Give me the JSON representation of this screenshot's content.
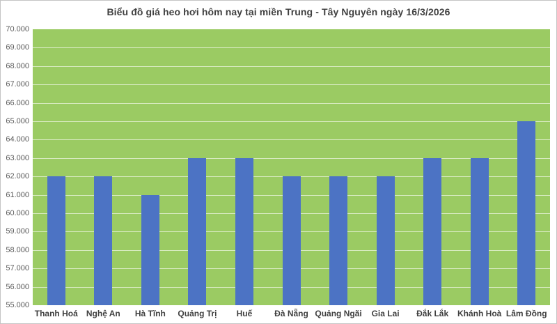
{
  "title": "Biểu đồ giá heo hơi hôm nay tại miền Trung - Tây Nguyên ngày 16/3/2026",
  "colors": {
    "bar": "#4C73C4",
    "plot_bg": "#9BCB63",
    "gridline": "rgba(255,255,255,0.6)",
    "title_text": "#404040",
    "axis_text": "#595959",
    "border": "#c4c4c4"
  },
  "chart_data": {
    "type": "bar",
    "title": "Biểu đồ giá heo hơi hôm nay tại miền Trung - Tây Nguyên ngày 16/3/2026",
    "categories": [
      "Thanh Hoá",
      "Nghệ An",
      "Hà Tĩnh",
      "Quảng Trị",
      "Huế",
      "Đà Nẵng",
      "Quảng Ngãi",
      "Gia Lai",
      "Đắk Lắk",
      "Khánh Hoà",
      "Lâm Đồng"
    ],
    "values": [
      62000,
      62000,
      61000,
      63000,
      63000,
      62000,
      62000,
      62000,
      63000,
      63000,
      65000
    ],
    "xlabel": "",
    "ylabel": "",
    "ylim": [
      55000,
      70000
    ],
    "ytick_step": 1000,
    "ytick_labels": [
      "70.000",
      "69.000",
      "68.000",
      "67.000",
      "66.000",
      "65.000",
      "64.000",
      "63.000",
      "62.000",
      "61.000",
      "60.000",
      "59.000",
      "58.000",
      "57.000",
      "56.000",
      "55.000"
    ],
    "grid": true,
    "legend": "none"
  }
}
